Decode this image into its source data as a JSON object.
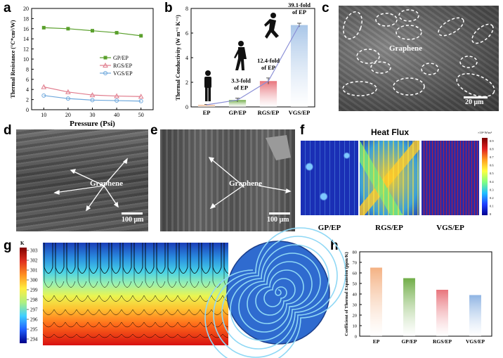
{
  "panel_labels": [
    "a",
    "b",
    "c",
    "d",
    "e",
    "f",
    "g",
    "h"
  ],
  "panel_c": {
    "annotation": "Graphene",
    "scale": "20 μm"
  },
  "panel_d": {
    "annotation": "Graphene",
    "scale": "100 μm"
  },
  "panel_e": {
    "annotation": "Graphene",
    "scale": "100 μm"
  },
  "panel_f": {
    "title": "Heat Flux",
    "cb_unit": "×10⁴ W/m²",
    "cb_ticks": [
      "0.9",
      "0.8",
      "0.7",
      "0.6",
      "0.5",
      "0.4",
      "0.3",
      "0.2",
      "0.1",
      "0"
    ],
    "labels": [
      "GP/EP",
      "RGS/EP",
      "VGS/EP"
    ]
  },
  "panel_g": {
    "cb_unit": "K",
    "cb_ticks": [
      "303",
      "302",
      "301",
      "300",
      "299",
      "298",
      "297",
      "296",
      "295",
      "294"
    ]
  },
  "chart_data": [
    {
      "id": "a",
      "type": "line",
      "xlabel": "Pressure (Psi)",
      "ylabel": "Thermal Resistance (°C*cm²/W)",
      "x": [
        10,
        20,
        30,
        40,
        50
      ],
      "xlim": [
        5,
        55
      ],
      "ylim": [
        0,
        20
      ],
      "xticks": [
        "10",
        "20",
        "30",
        "40",
        "50"
      ],
      "yticks": [
        "0",
        "2",
        "4",
        "6",
        "8",
        "10",
        "12",
        "14",
        "16",
        "18",
        "20"
      ],
      "series": [
        {
          "name": "GP/EP",
          "values": [
            16.2,
            16.0,
            15.6,
            15.2,
            14.6
          ],
          "color": "#5aa02c",
          "marker": "square"
        },
        {
          "name": "RGS/EP",
          "values": [
            4.5,
            3.5,
            2.9,
            2.7,
            2.6
          ],
          "color": "#e07b8c",
          "marker": "triangle"
        },
        {
          "name": "VGS/EP",
          "values": [
            2.8,
            2.2,
            1.9,
            1.8,
            1.7
          ],
          "color": "#6fa8dc",
          "marker": "circle"
        }
      ]
    },
    {
      "id": "b",
      "type": "bar",
      "ylabel": "Thermal Conductivity (W m⁻¹ K⁻¹)",
      "categories": [
        "EP",
        "GP/EP",
        "RGS/EP",
        "VGS/EP"
      ],
      "values": [
        0.17,
        0.56,
        2.1,
        6.65
      ],
      "errors": [
        0.03,
        0.15,
        0.25,
        0.15
      ],
      "ylim": [
        0,
        8
      ],
      "yticks": [
        "0",
        "2",
        "4",
        "6",
        "8"
      ],
      "colors": [
        "#f4b183",
        "#70ad47",
        "#e8747c",
        "#a9c6e8"
      ],
      "annotations": [
        {
          "lines": [
            "3.3-fold",
            "of EP"
          ],
          "index": 1
        },
        {
          "lines": [
            "12.4-fold",
            "of EP"
          ],
          "index": 2
        },
        {
          "lines": [
            "39.1-fold",
            "of EP"
          ],
          "index": 3
        }
      ]
    },
    {
      "id": "h",
      "type": "bar",
      "ylabel": "Coefficient of Thermal Expansion (ppm/K)",
      "categories": [
        "EP",
        "GP/EP",
        "RGS/EP",
        "VGS/EP"
      ],
      "values": [
        65,
        55,
        44,
        39
      ],
      "ylim": [
        0,
        80
      ],
      "yticks": [
        "0",
        "10",
        "20",
        "30",
        "40",
        "50",
        "60",
        "70",
        "80"
      ],
      "colors": [
        "#f4b183",
        "#70ad47",
        "#e8747c",
        "#8fb4e3"
      ]
    }
  ]
}
